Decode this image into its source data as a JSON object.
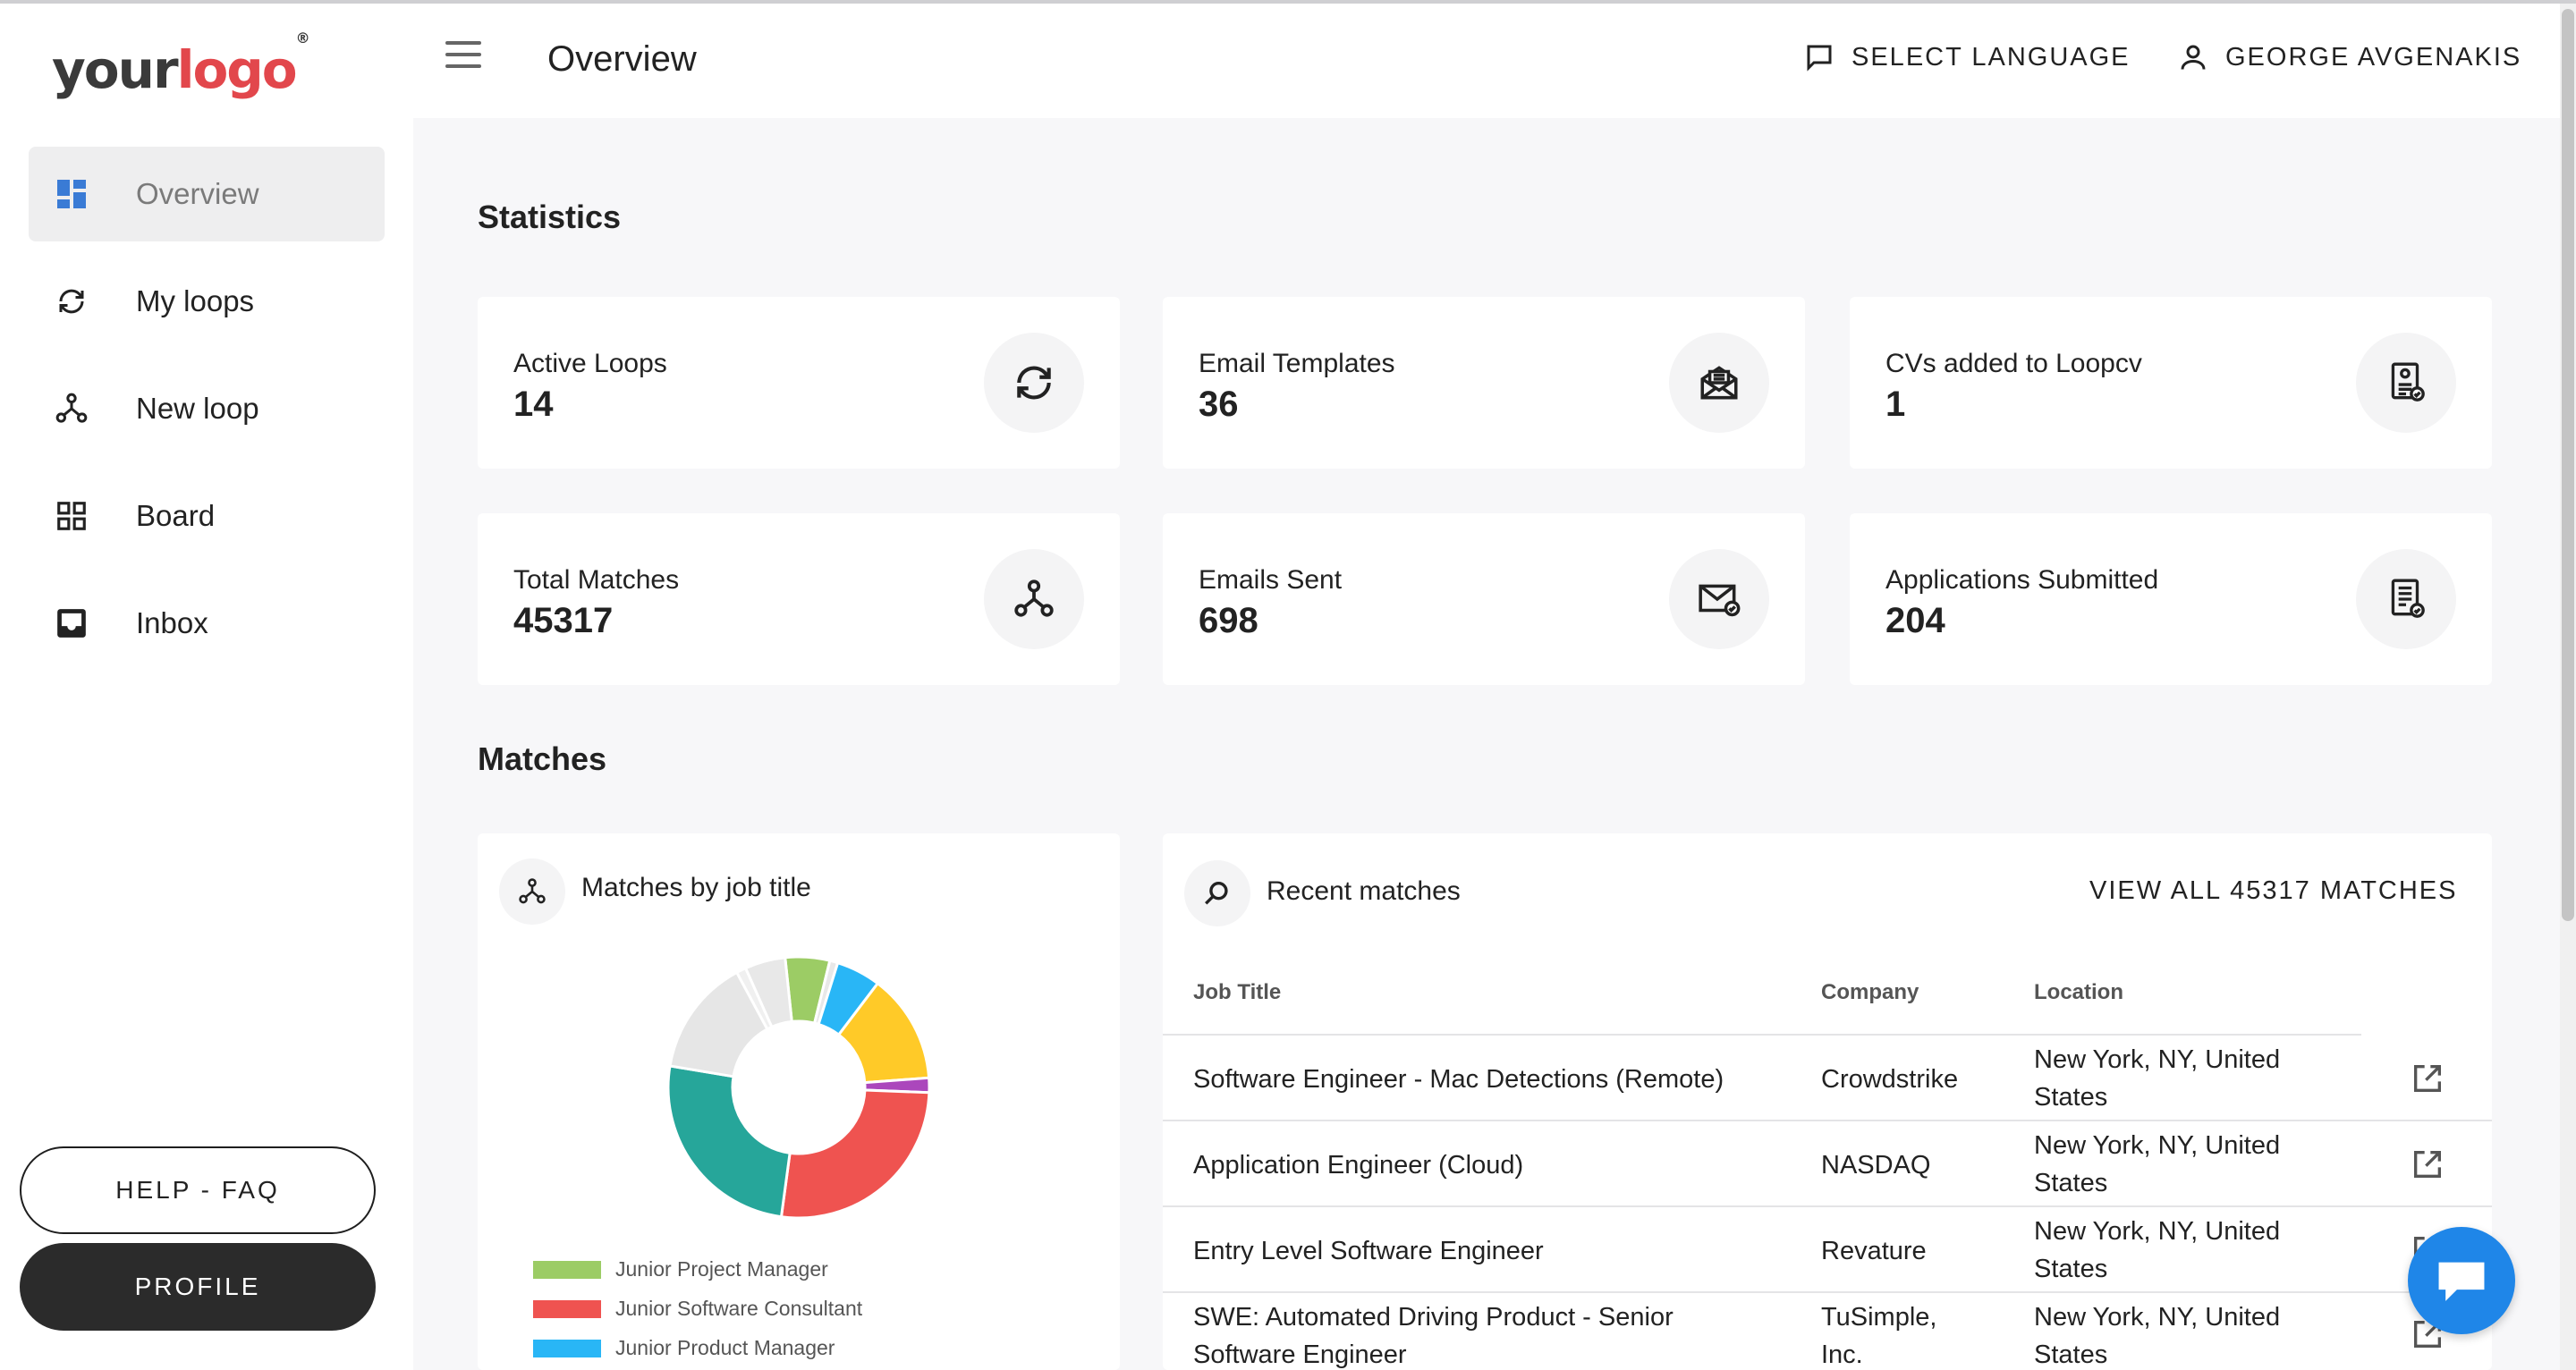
{
  "logo": {
    "part1": "your",
    "part2": "logo",
    "mark": "®"
  },
  "sidebar": {
    "items": [
      {
        "label": "Overview",
        "icon": "dashboard-icon",
        "active": true
      },
      {
        "label": "My loops",
        "icon": "sync-icon"
      },
      {
        "label": "New loop",
        "icon": "hub-icon"
      },
      {
        "label": "Board",
        "icon": "grid-icon"
      },
      {
        "label": "Inbox",
        "icon": "inbox-icon"
      }
    ],
    "help_label": "HELP - FAQ",
    "profile_label": "PROFILE"
  },
  "header": {
    "title": "Overview",
    "language_label": "SELECT LANGUAGE",
    "user_name": "GEORGE AVGENAKIS"
  },
  "statistics": {
    "title": "Statistics",
    "cards": [
      {
        "label": "Active Loops",
        "value": "14",
        "icon": "sync-icon"
      },
      {
        "label": "Email Templates",
        "value": "36",
        "icon": "mail-open-icon"
      },
      {
        "label": "CVs added to Loopcv",
        "value": "1",
        "icon": "cv-icon"
      },
      {
        "label": "Total Matches",
        "value": "45317",
        "icon": "hub-icon"
      },
      {
        "label": "Emails Sent",
        "value": "698",
        "icon": "mail-check-icon"
      },
      {
        "label": "Applications Submitted",
        "value": "204",
        "icon": "document-check-icon"
      }
    ]
  },
  "matches": {
    "title": "Matches",
    "chart_panel": {
      "title": "Matches by job title",
      "legend": [
        {
          "label": "Junior Project Manager",
          "color": "#9ccc65"
        },
        {
          "label": "Junior Software Consultant",
          "color": "#ef5350"
        },
        {
          "label": "Junior Product Manager",
          "color": "#29b6f6"
        }
      ]
    },
    "recent": {
      "title": "Recent matches",
      "view_all": "VIEW ALL 45317 MATCHES",
      "columns": [
        "Job Title",
        "Company",
        "Location"
      ],
      "rows": [
        {
          "title_l1": "Software Engineer - Mac Detections (Remote)",
          "title_l2": "",
          "company_l1": "Crowdstrike",
          "company_l2": "",
          "loc_l1": "New York, NY, United",
          "loc_l2": "States"
        },
        {
          "title_l1": "Application Engineer (Cloud)",
          "title_l2": "",
          "company_l1": "NASDAQ",
          "company_l2": "",
          "loc_l1": "New York, NY, United",
          "loc_l2": "States"
        },
        {
          "title_l1": "Entry Level Software Engineer",
          "title_l2": "",
          "company_l1": "Revature",
          "company_l2": "",
          "loc_l1": "New York, NY, United",
          "loc_l2": "States"
        },
        {
          "title_l1": "SWE: Automated Driving Product - Senior",
          "title_l2": "Software Engineer",
          "company_l1": "TuSimple,",
          "company_l2": "Inc.",
          "loc_l1": "New York, NY, United",
          "loc_l2": "States"
        }
      ]
    }
  },
  "chart_data": {
    "type": "pie",
    "title": "Matches by job title",
    "slices": [
      {
        "name": "Junior Project Manager",
        "value": 5.5,
        "color": "#9ccc65"
      },
      {
        "name": "",
        "value": 1.0,
        "color": "#e8e8e8"
      },
      {
        "name": "Junior Product Manager",
        "value": 5.5,
        "color": "#29b6f6"
      },
      {
        "name": "",
        "value": 13.5,
        "color": "#ffca28"
      },
      {
        "name": "",
        "value": 1.8,
        "color": "#ab47bc"
      },
      {
        "name": "Junior Software Consultant",
        "value": 26.5,
        "color": "#ef5350"
      },
      {
        "name": "",
        "value": 25.5,
        "color": "#26a69a"
      },
      {
        "name": "",
        "value": 14.5,
        "color": "#e6e6e6"
      },
      {
        "name": "",
        "value": 1.2,
        "color": "#f0f0f0"
      },
      {
        "name": "",
        "value": 5.0,
        "color": "#e8e8e8"
      }
    ]
  }
}
